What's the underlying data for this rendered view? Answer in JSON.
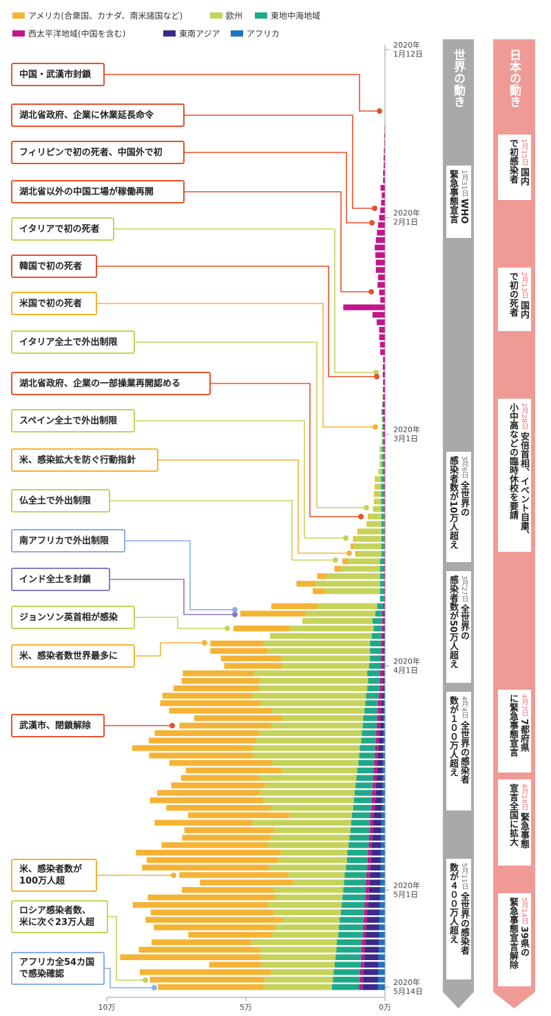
{
  "chart_data": {
    "type": "bar",
    "orientation": "horizontal",
    "stacked": true,
    "date_range": [
      "2020-01-12",
      "2020-05-14"
    ],
    "interval": "daily",
    "value_unit": "万",
    "xlim": [
      10,
      0
    ],
    "x_ticks": [
      {
        "value": 10,
        "label": "10万"
      },
      {
        "value": 5,
        "label": "5万"
      },
      {
        "value": 0,
        "label": "0万"
      }
    ],
    "date_ticks": [
      {
        "day": 0,
        "year": "2020年",
        "date": "1月12日"
      },
      {
        "day": 20,
        "year": "2020年",
        "date": "2月1日"
      },
      {
        "day": 49,
        "year": "2020年",
        "date": "3月1日"
      },
      {
        "day": 80,
        "year": "2020年",
        "date": "4月1日"
      },
      {
        "day": 110,
        "year": "2020年",
        "date": "5月1日"
      },
      {
        "day": 123,
        "year": "2020年",
        "date": "5月14日"
      }
    ],
    "legend_position": "top-left",
    "series": [
      {
        "key": "americas",
        "name": "アメリカ(合衆国、カナダ、南米諸国など)",
        "color": "#f5b335",
        "values": [
          0,
          0,
          0,
          0,
          0,
          0,
          0,
          0,
          0,
          0,
          0,
          0,
          0,
          0,
          0,
          0,
          0,
          0,
          0,
          0,
          0,
          0,
          0,
          0,
          0,
          0,
          0,
          0,
          0,
          0,
          0,
          0,
          0,
          0,
          0,
          0,
          0,
          0,
          0,
          0,
          0,
          0,
          0,
          0,
          0,
          0,
          0,
          0,
          0,
          0,
          0,
          0,
          0,
          0,
          0,
          0.01,
          0.01,
          0.01,
          0.01,
          0.01,
          0.03,
          0.03,
          0.06,
          0.08,
          0.11,
          0.09,
          0.2,
          0.25,
          0.35,
          0.7,
          0.45,
          0,
          1.69,
          2.35,
          0,
          2.02,
          0,
          1.9,
          2.05,
          2.15,
          2.1,
          2.56,
          2.81,
          3.06,
          3.22,
          3.62,
          3.68,
          3.16,
          3.32,
          3.76,
          3.84,
          4.33,
          3.73,
          3.7,
          3.43,
          2.83,
          3.37,
          3.67,
          4.07,
          3.75,
          3.63,
          3.51,
          3.2,
          3.2,
          3.82,
          5.2,
          4.73,
          4.57,
          3.92,
          3.35,
          3.32,
          4.57,
          4.87,
          4.4,
          4.91,
          4.36,
          2.98,
          3.56,
          4.32,
          5.06,
          1.86,
          4.71,
          4.11,
          3.78
        ]
      },
      {
        "key": "europe",
        "name": "欧州",
        "color": "#c5d35a",
        "values": [
          0,
          0,
          0,
          0,
          0,
          0,
          0,
          0,
          0,
          0,
          0,
          0,
          0,
          0,
          0,
          0,
          0,
          0,
          0,
          0,
          0,
          0,
          0,
          0,
          0,
          0,
          0,
          0,
          0,
          0,
          0,
          0,
          0,
          0,
          0,
          0,
          0,
          0,
          0,
          0,
          0,
          0,
          0,
          0,
          0.01,
          0.01,
          0.02,
          0.03,
          0.03,
          0.03,
          0.03,
          0.09,
          0.09,
          0.09,
          0.13,
          0.22,
          0.22,
          0.25,
          0.25,
          0.28,
          0.46,
          0.5,
          0.8,
          0.94,
          1.0,
          0.85,
          1.15,
          1.39,
          1.91,
          2.3,
          1.97,
          0,
          2.12,
          2.5,
          2.52,
          3.02,
          3.65,
          3.84,
          3.69,
          3.2,
          3.11,
          4.07,
          3.89,
          3.9,
          4.1,
          3.75,
          3.34,
          2.92,
          3.27,
          3.68,
          3.79,
          3.85,
          3.82,
          3.09,
          2.73,
          3.47,
          3.25,
          3.43,
          3.26,
          2.97,
          2.26,
          3.55,
          2.77,
          2.81,
          2.9,
          2.4,
          2.46,
          2.76,
          2.02,
          1.83,
          2.48,
          2.43,
          2.64,
          2.43,
          2.07,
          2.29,
          2.41,
          3.1,
          2.78,
          2.68,
          2.65,
          2.25,
          2.47,
          2.47
        ]
      },
      {
        "key": "emed",
        "name": "東地中海地域",
        "color": "#1fa98a",
        "values": [
          0,
          0,
          0,
          0,
          0,
          0,
          0,
          0,
          0,
          0,
          0,
          0,
          0,
          0,
          0,
          0,
          0,
          0,
          0,
          0,
          0,
          0,
          0,
          0,
          0,
          0,
          0,
          0,
          0,
          0,
          0,
          0,
          0,
          0,
          0,
          0,
          0,
          0,
          0,
          0,
          0,
          0,
          0,
          0.01,
          0.01,
          0.02,
          0.03,
          0.04,
          0.04,
          0.04,
          0.04,
          0.07,
          0.07,
          0.07,
          0.07,
          0.1,
          0.1,
          0.1,
          0.1,
          0.1,
          0.1,
          0.1,
          0.1,
          0.1,
          0.1,
          0.1,
          0.14,
          0.14,
          0.14,
          0.14,
          0.14,
          0.14,
          0.2,
          0.25,
          0.35,
          0.3,
          0.35,
          0.4,
          0.4,
          0.4,
          0.42,
          0.45,
          0.42,
          0.45,
          0.45,
          0.46,
          0.48,
          0.49,
          0.5,
          0.52,
          0.53,
          0.55,
          0.56,
          0.57,
          0.59,
          0.6,
          0.61,
          0.63,
          0.64,
          0.65,
          0.67,
          0.68,
          0.69,
          0.71,
          0.72,
          0.74,
          0.75,
          0.76,
          0.78,
          0.79,
          0.8,
          0.82,
          0.83,
          0.84,
          0.86,
          0.87,
          0.88,
          0.9,
          0.91,
          0.92,
          0.94,
          0.95,
          0.96,
          0.98
        ]
      },
      {
        "key": "wpac",
        "name": "西太平洋地域(中国を含む)",
        "color": "#c3168a",
        "values": [
          0,
          0,
          0,
          0,
          0,
          0,
          0.01,
          0.01,
          0.02,
          0.03,
          0.03,
          0.04,
          0.05,
          0.05,
          0.07,
          0.07,
          0.16,
          0.12,
          0.14,
          0.17,
          0.21,
          0.25,
          0.29,
          0.33,
          0.37,
          0.35,
          0.33,
          0.33,
          0.25,
          0.27,
          0.21,
          0.17,
          1.5,
          0.45,
          0.3,
          0.21,
          0.21,
          0.18,
          0.17,
          0.07,
          0.08,
          0.08,
          0.07,
          0.07,
          0.07,
          0.08,
          0.09,
          0.05,
          0.05,
          0.05,
          0.05,
          0.04,
          0.04,
          0.04,
          0.04,
          0.04,
          0.04,
          0.04,
          0.04,
          0.04,
          0.03,
          0.03,
          0.03,
          0.03,
          0.03,
          0.03,
          0.03,
          0.03,
          0.03,
          0.03,
          0.03,
          0.03,
          0.06,
          0.06,
          0.06,
          0.07,
          0.07,
          0.08,
          0.08,
          0.08,
          0.08,
          0.1,
          0.1,
          0.1,
          0.12,
          0.12,
          0.12,
          0.12,
          0.12,
          0.12,
          0.12,
          0.12,
          0.12,
          0.12,
          0.12,
          0.12,
          0.12,
          0.12,
          0.12,
          0.12,
          0.12,
          0.12,
          0.12,
          0.12,
          0.12,
          0.12,
          0.12,
          0.12,
          0.12,
          0.12,
          0.12,
          0.12,
          0.12,
          0.12,
          0.12,
          0.12,
          0.12,
          0.12,
          0.12,
          0.12,
          0.12,
          0.12,
          0.12,
          0.12
        ]
      },
      {
        "key": "searo",
        "name": "東南アジア",
        "color": "#3b2a8a",
        "values": [
          0,
          0,
          0,
          0,
          0,
          0,
          0,
          0,
          0,
          0,
          0,
          0,
          0,
          0,
          0,
          0,
          0,
          0,
          0,
          0,
          0,
          0,
          0,
          0,
          0,
          0,
          0,
          0,
          0,
          0,
          0,
          0,
          0,
          0,
          0,
          0,
          0,
          0,
          0,
          0,
          0,
          0,
          0,
          0,
          0,
          0,
          0,
          0,
          0,
          0,
          0,
          0,
          0,
          0,
          0,
          0,
          0,
          0,
          0,
          0,
          0,
          0,
          0,
          0,
          0,
          0,
          0.01,
          0.01,
          0.01,
          0.01,
          0.01,
          0.01,
          0.02,
          0.03,
          0.03,
          0.03,
          0.04,
          0.04,
          0.04,
          0.05,
          0.05,
          0.06,
          0.06,
          0.06,
          0.08,
          0.09,
          0.1,
          0.12,
          0.13,
          0.14,
          0.15,
          0.17,
          0.18,
          0.19,
          0.2,
          0.22,
          0.23,
          0.24,
          0.25,
          0.26,
          0.28,
          0.29,
          0.3,
          0.31,
          0.33,
          0.34,
          0.35,
          0.36,
          0.38,
          0.39,
          0.4,
          0.41,
          0.42,
          0.44,
          0.45,
          0.46,
          0.47,
          0.49,
          0.5,
          0.51,
          0.52,
          0.54,
          0.55,
          0.56
        ]
      },
      {
        "key": "afro",
        "name": "アフリカ",
        "color": "#1f74c0",
        "values": [
          0,
          0,
          0,
          0,
          0,
          0,
          0,
          0,
          0,
          0,
          0,
          0,
          0,
          0,
          0,
          0,
          0,
          0,
          0,
          0,
          0,
          0,
          0,
          0,
          0,
          0,
          0,
          0,
          0,
          0,
          0,
          0,
          0,
          0,
          0,
          0,
          0,
          0,
          0,
          0,
          0,
          0,
          0,
          0,
          0,
          0,
          0,
          0,
          0,
          0,
          0,
          0,
          0,
          0,
          0,
          0,
          0,
          0,
          0,
          0,
          0,
          0,
          0,
          0,
          0,
          0,
          0,
          0,
          0,
          0,
          0,
          0,
          0,
          0.01,
          0.01,
          0.01,
          0.02,
          0.02,
          0.02,
          0.02,
          0.02,
          0.03,
          0.03,
          0.03,
          0.03,
          0.04,
          0.04,
          0.05,
          0.05,
          0.06,
          0.06,
          0.07,
          0.07,
          0.08,
          0.09,
          0.09,
          0.1,
          0.1,
          0.11,
          0.11,
          0.12,
          0.13,
          0.13,
          0.14,
          0.14,
          0.15,
          0.15,
          0.16,
          0.17,
          0.17,
          0.18,
          0.18,
          0.19,
          0.19,
          0.2,
          0.21,
          0.21,
          0.22,
          0.22,
          0.23,
          0.23,
          0.24,
          0.24,
          0.25
        ]
      }
    ]
  },
  "events": [
    {
      "lines": [
        "中国・武漢市封鎖"
      ],
      "color": "#e8502a"
    },
    {
      "lines": [
        "湖北省政府、企業に休業延長命令"
      ],
      "color": "#e8502a"
    },
    {
      "lines": [
        "フィリピンで初の死者、中国外で初"
      ],
      "color": "#e8502a"
    },
    {
      "lines": [
        "湖北省以外の中国工場が稼働再開"
      ],
      "color": "#e8502a"
    },
    {
      "lines": [
        "イタリアで初の死者"
      ],
      "color": "#c5d35a"
    },
    {
      "lines": [
        "韓国で初の死者"
      ],
      "color": "#e8502a"
    },
    {
      "lines": [
        "米国で初の死者"
      ],
      "color": "#f5b335"
    },
    {
      "lines": [
        "イタリア全土で外出制限"
      ],
      "color": "#c5d35a"
    },
    {
      "lines": [
        "湖北省政府、企業の一部操業再開認める"
      ],
      "color": "#e8502a"
    },
    {
      "lines": [
        "スペイン全土で外出制限"
      ],
      "color": "#c5d35a"
    },
    {
      "lines": [
        "米、感染拡大を防ぐ行動指針"
      ],
      "color": "#f5b335"
    },
    {
      "lines": [
        "仏全土で外出制限"
      ],
      "color": "#c5d35a"
    },
    {
      "lines": [
        "南アフリカで外出制限"
      ],
      "color": "#8aaee0"
    },
    {
      "lines": [
        "インド全土を封鎖"
      ],
      "color": "#8a78c8"
    },
    {
      "lines": [
        "ジョンソン英首相が感染"
      ],
      "color": "#c5d35a"
    },
    {
      "lines": [
        "米、感染者数世界最多に"
      ],
      "color": "#f5b335"
    },
    {
      "lines": [
        "武漢市、閉鎖解除"
      ],
      "color": "#e8502a"
    },
    {
      "lines": [
        "米、感染者数が",
        "100万人超"
      ],
      "color": "#f5b335"
    },
    {
      "lines": [
        "ロシア感染者数、",
        "米に次ぐ23万人超"
      ],
      "color": "#c5d35a"
    },
    {
      "lines": [
        "アフリカ全54カ国",
        "で感染確認"
      ],
      "color": "#8aaee0"
    }
  ],
  "world_panel": {
    "title": "世界の動き",
    "color": "#a9a9a9",
    "items": [
      {
        "date": "1月31日",
        "line1": "WHO",
        "line2": "緊急事態宣言"
      },
      {
        "date": "3月6日",
        "line1": "全世界の",
        "line2": "感染者数が10万人超え"
      },
      {
        "date": "3月27日",
        "line1": "全世界の",
        "line2": "感染者数が50万人超え"
      },
      {
        "date": "4月4日",
        "line1": "全世界の感染者",
        "line2": "数が１００万人超え"
      },
      {
        "date": "5月11日",
        "line1": "全世界の感染者",
        "line2": "数が４００万人超え"
      }
    ]
  },
  "japan_panel": {
    "title": "日本の動き",
    "color": "#f09a96",
    "items": [
      {
        "date": "1月15日",
        "line1": "国内",
        "line2": "で初感染者"
      },
      {
        "date": "2月13日",
        "line1": "国内",
        "line2": "で初の死者"
      },
      {
        "date": "2月28日",
        "line1": "安倍首相、イベント自粛、",
        "line2": "小中高などの臨時休校を要請"
      },
      {
        "date": "4月7日",
        "line1": "7都府県",
        "line2": "に緊急事態宣言"
      },
      {
        "date": "4月16日",
        "line1": "緊急事態",
        "line2": "宣言全国に拡大"
      },
      {
        "date": "5月14日",
        "line1": "39県の",
        "line2": "緊急事態宣言解除"
      }
    ]
  }
}
